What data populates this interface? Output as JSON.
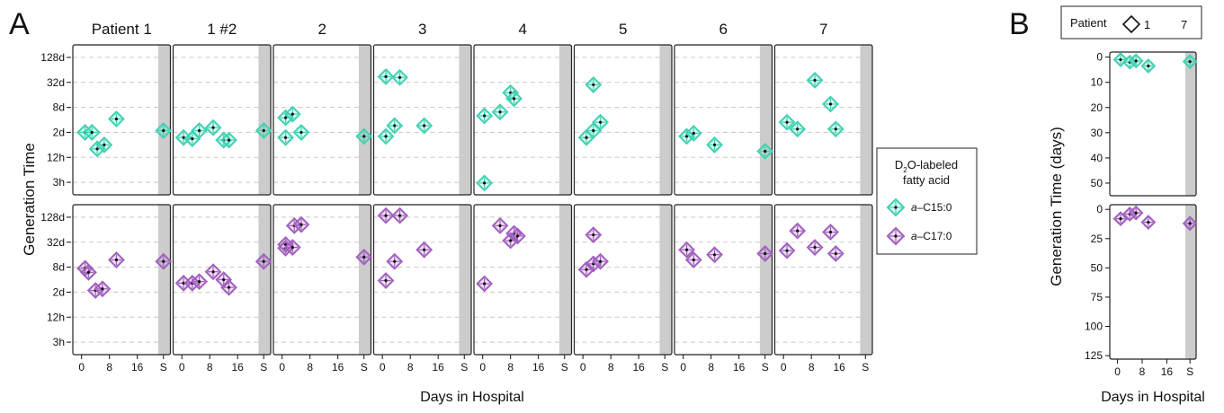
{
  "panel_letters": [
    "A",
    "B"
  ],
  "chart_data": [
    {
      "panel": "A",
      "type": "scatter",
      "facet_columns": [
        "Patient 1",
        "1 #2",
        "2",
        "3",
        "4",
        "5",
        "6",
        "7"
      ],
      "facet_rows": [
        "a-C15:0",
        "a-C17:0"
      ],
      "xlabel": "Days in Hospital",
      "ylabel": "Generation Time",
      "x_ticks": [
        "0",
        "8",
        "16",
        "S"
      ],
      "x_tick_values": [
        0,
        8,
        16,
        23.5
      ],
      "xlim": [
        -2.5,
        25.5
      ],
      "shaded_x": [
        22,
        25.5
      ],
      "y_ticks": [
        "3h",
        "12h",
        "2d",
        "8d",
        "32d",
        "128d"
      ],
      "y_tick_values": [
        0.125,
        0.5,
        2,
        8,
        32,
        128
      ],
      "ylim": [
        0.0625,
        256
      ],
      "y_scale": "log2",
      "grid": "horizontal dashed",
      "legend": {
        "title_main": "D",
        "title_sub": "2",
        "title_rest": "O-labeled",
        "title_line2": "fatty acid",
        "entries": [
          {
            "prefix": "a",
            "suffix": "–C15:0",
            "color": "#3fd1b2"
          },
          {
            "prefix": "a",
            "suffix": "–C17:0",
            "color": "#a15fbf"
          }
        ],
        "placement": "right"
      },
      "series": [
        {
          "name": "a-C15:0",
          "color": "#3fd1b2",
          "facets": [
            [
              [
                1,
                2
              ],
              [
                3,
                2
              ],
              [
                4.5,
                0.8
              ],
              [
                6.5,
                1.0
              ],
              [
                10,
                4.2
              ],
              [
                23.5,
                2.2
              ]
            ],
            [
              [
                0.5,
                1.5
              ],
              [
                3,
                1.4
              ],
              [
                5,
                2.2
              ],
              [
                9,
                2.6
              ],
              [
                12,
                1.3
              ],
              [
                13.5,
                1.3
              ],
              [
                23.5,
                2.2
              ]
            ],
            [
              [
                1,
                1.5
              ],
              [
                1,
                4.5
              ],
              [
                3,
                5.5
              ],
              [
                5.5,
                2.0
              ],
              [
                23.5,
                1.6
              ]
            ],
            [
              [
                1,
                1.6
              ],
              [
                3.5,
                2.9
              ],
              [
                12,
                2.9
              ],
              [
                1,
                44
              ],
              [
                5,
                42
              ]
            ],
            [
              [
                0.5,
                0.12
              ],
              [
                0.5,
                5.0
              ],
              [
                5,
                6.2
              ],
              [
                8,
                18
              ],
              [
                9,
                13
              ]
            ],
            [
              [
                1,
                1.5
              ],
              [
                3,
                2.2
              ],
              [
                5,
                3.5
              ],
              [
                3,
                28
              ]
            ],
            [
              [
                1,
                1.6
              ],
              [
                3,
                1.9
              ],
              [
                9,
                1.0
              ],
              [
                23.5,
                0.7
              ]
            ],
            [
              [
                1,
                3.5
              ],
              [
                4,
                2.4
              ],
              [
                15,
                2.4
              ],
              [
                9,
                36
              ],
              [
                13.5,
                9.6
              ]
            ]
          ]
        },
        {
          "name": "a-C17:0",
          "color": "#a15fbf",
          "facets": [
            [
              [
                1,
                7.5
              ],
              [
                2,
                6.0
              ],
              [
                4,
                2.2
              ],
              [
                6,
                2.4
              ],
              [
                10,
                12
              ],
              [
                23.5,
                11
              ]
            ],
            [
              [
                0.5,
                3.3
              ],
              [
                3,
                3.3
              ],
              [
                5,
                3.6
              ],
              [
                9,
                6.2
              ],
              [
                12,
                4.0
              ],
              [
                13.5,
                2.6
              ],
              [
                23.5,
                11
              ]
            ],
            [
              [
                1,
                23
              ],
              [
                1,
                28
              ],
              [
                3,
                24
              ],
              [
                3.5,
                80
              ],
              [
                5.5,
                85
              ],
              [
                23.5,
                14
              ]
            ],
            [
              [
                1,
                3.8
              ],
              [
                3.5,
                11
              ],
              [
                12,
                21
              ],
              [
                1,
                140
              ],
              [
                5,
                140
              ]
            ],
            [
              [
                0.5,
                3.2
              ],
              [
                5,
                80
              ],
              [
                8,
                35
              ],
              [
                9,
                52
              ],
              [
                10,
                45
              ]
            ],
            [
              [
                1,
                7.0
              ],
              [
                3,
                9.6
              ],
              [
                5,
                11
              ],
              [
                3,
                48
              ]
            ],
            [
              [
                1,
                21
              ],
              [
                3,
                12
              ],
              [
                9,
                16
              ],
              [
                23.5,
                17
              ]
            ],
            [
              [
                1,
                20
              ],
              [
                4,
                60
              ],
              [
                15,
                17
              ],
              [
                9,
                24
              ],
              [
                13.5,
                56
              ]
            ]
          ]
        }
      ]
    },
    {
      "panel": "B",
      "type": "scatter",
      "xlabel": "Days in Hospital",
      "ylabel": "Generation Time (days)",
      "x_ticks": [
        "0",
        "8",
        "16",
        "S"
      ],
      "x_tick_values": [
        0,
        8,
        16,
        23.5
      ],
      "xlim": [
        -2.5,
        25.5
      ],
      "shaded_x": [
        22,
        25.5
      ],
      "legend": {
        "title": "Patient",
        "entries": [
          "1",
          "7"
        ],
        "placement": "top"
      },
      "subpanels": [
        {
          "series": "a-C15:0",
          "color": "#3fd1b2",
          "y_ticks": [
            0,
            10,
            20,
            30,
            40,
            50
          ],
          "ylim": [
            -2,
            55
          ],
          "points": [
            [
              1,
              1
            ],
            [
              4,
              2
            ],
            [
              6,
              1.5
            ],
            [
              10,
              3.5
            ],
            [
              23.5,
              1.8
            ]
          ]
        },
        {
          "series": "a-C17:0",
          "color": "#a15fbf",
          "y_ticks": [
            0,
            25,
            50,
            75,
            100,
            125
          ],
          "ylim": [
            -4,
            128
          ],
          "points": [
            [
              1,
              8
            ],
            [
              4,
              4
            ],
            [
              6,
              3
            ],
            [
              10,
              11
            ],
            [
              23.5,
              12
            ]
          ]
        }
      ]
    }
  ]
}
